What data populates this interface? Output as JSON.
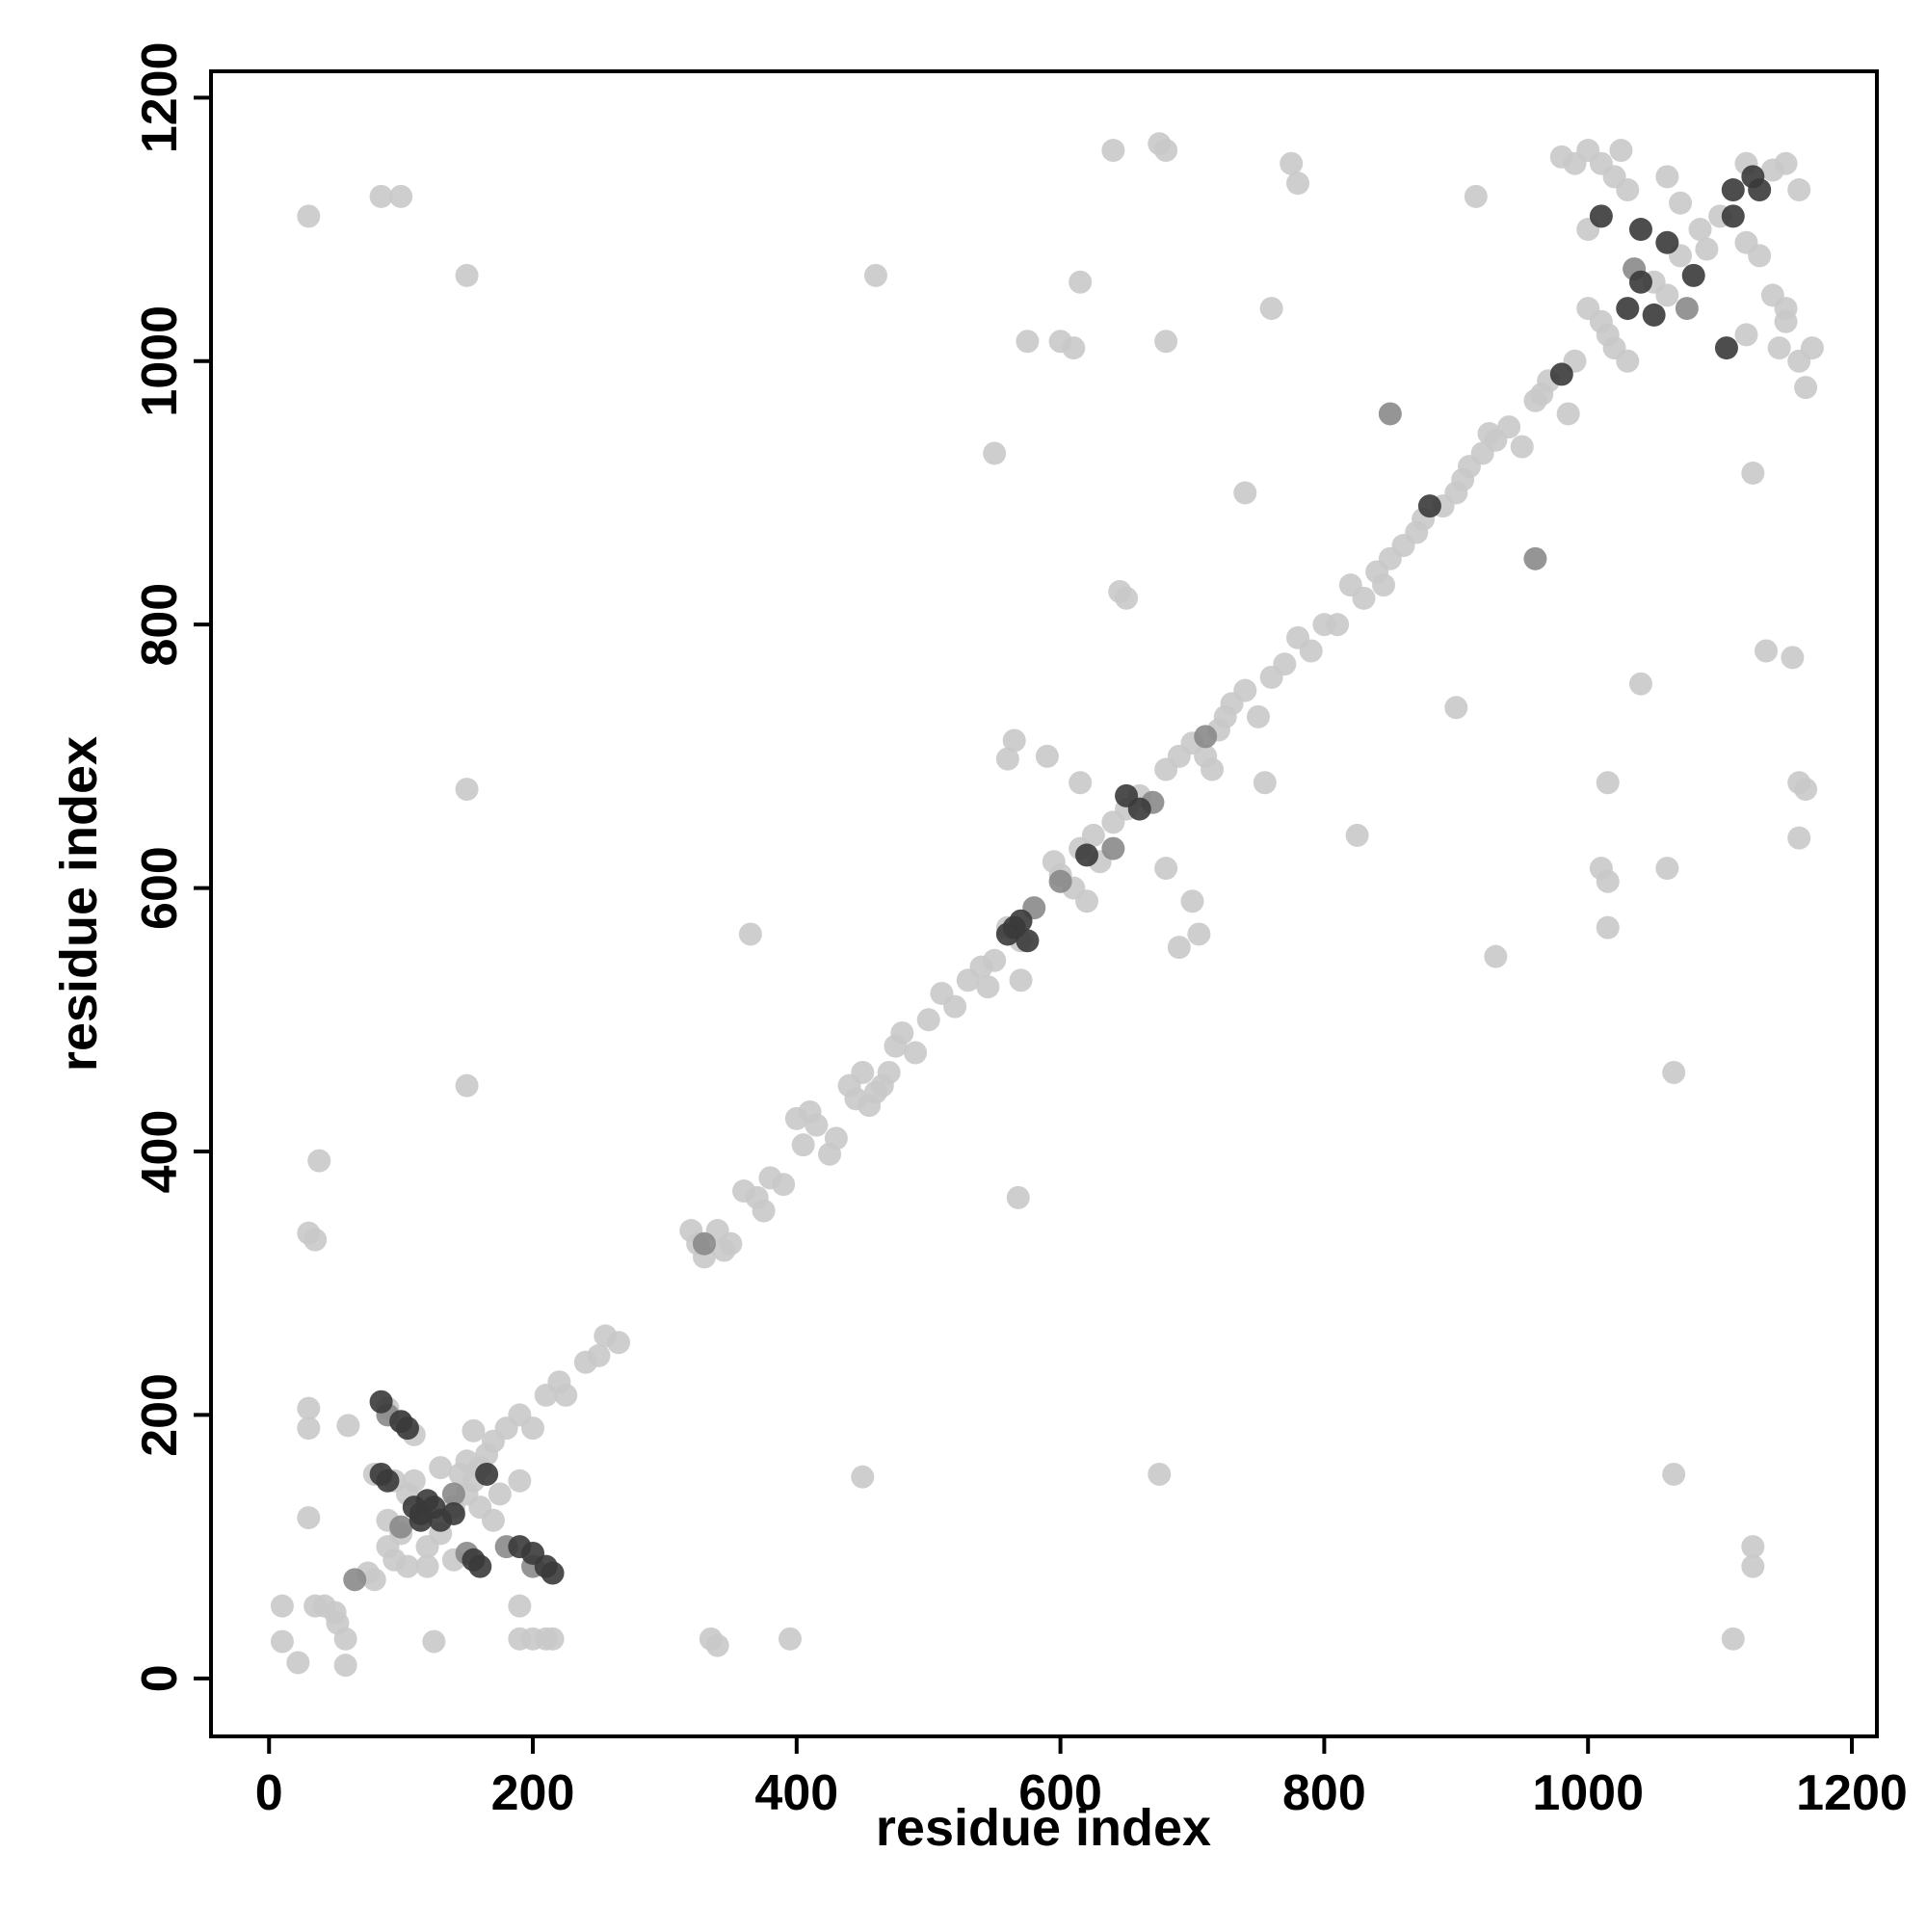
{
  "chart_data": {
    "type": "scatter",
    "xlabel": "residue index",
    "ylabel": "residue index",
    "xlim": [
      -44,
      1219
    ],
    "ylim": [
      -44,
      1220
    ],
    "xticks": [
      0,
      200,
      400,
      600,
      800,
      1000,
      1200
    ],
    "yticks": [
      0,
      200,
      400,
      600,
      800,
      1000,
      1200
    ],
    "grid": false,
    "series": [
      {
        "color": "#c9c9c9",
        "x": [
          10,
          10,
          22,
          35,
          42,
          50,
          52,
          58,
          58,
          30,
          30,
          30,
          60,
          38,
          30,
          35,
          90,
          100,
          110,
          90,
          100,
          90,
          95,
          105,
          120,
          130,
          140,
          150,
          155,
          160,
          165,
          170,
          155,
          180,
          190,
          200,
          210,
          220,
          225,
          240,
          250,
          255,
          265,
          75,
          80,
          190,
          190,
          200,
          210,
          215,
          125,
          190,
          160,
          170,
          145,
          150,
          130,
          110,
          105,
          95,
          80,
          120,
          140,
          175,
          320,
          325,
          330,
          340,
          345,
          350,
          360,
          370,
          375,
          380,
          390,
          400,
          410,
          405,
          415,
          425,
          430,
          440,
          445,
          450,
          455,
          460,
          465,
          470,
          475,
          480,
          490,
          500,
          510,
          520,
          530,
          540,
          545,
          550,
          560,
          570,
          595,
          600,
          610,
          615,
          620,
          625,
          630,
          640,
          650,
          660,
          680,
          690,
          700,
          710,
          715,
          720,
          725,
          730,
          740,
          750,
          760,
          770,
          780,
          790,
          800,
          810,
          820,
          830,
          840,
          845,
          850,
          860,
          870,
          875,
          890,
          900,
          905,
          910,
          920,
          925,
          930,
          940,
          950,
          960,
          965,
          970,
          985,
          990,
          1000,
          1010,
          1015,
          1020,
          1030,
          1050,
          1060,
          1070,
          1090,
          1100,
          1120,
          1130,
          1140,
          1150,
          1160,
          1165,
          1145,
          1150,
          1120,
          1120,
          1140,
          1150,
          1160,
          1000,
          1010,
          1020,
          1030,
          1025,
          980,
          990,
          1000,
          1060,
          1070,
          1085,
          30,
          85,
          100,
          150,
          150,
          150,
          365,
          335,
          340,
          395,
          450,
          460,
          550,
          560,
          565,
          568,
          570,
          575,
          590,
          600,
          610,
          615,
          615,
          640,
          645,
          650,
          675,
          680,
          675,
          680,
          680,
          690,
          700,
          705,
          740,
          755,
          760,
          775,
          780,
          825,
          900,
          915,
          930,
          1015,
          1010,
          1015,
          1015,
          1040,
          1060,
          1065,
          1065,
          1110,
          1125,
          1125,
          1125,
          1135,
          1155,
          1160,
          1165,
          1160,
          1170
        ],
        "y": [
          55,
          28,
          12,
          55,
          55,
          50,
          42,
          30,
          10,
          122,
          205,
          190,
          192,
          393,
          338,
          333,
          205,
          195,
          185,
          120,
          110,
          100,
          90,
          85,
          100,
          110,
          130,
          140,
          150,
          160,
          170,
          180,
          188,
          190,
          200,
          190,
          215,
          225,
          215,
          240,
          245,
          260,
          255,
          80,
          75,
          55,
          30,
          30,
          30,
          30,
          28,
          150,
          130,
          120,
          155,
          165,
          160,
          150,
          140,
          150,
          155,
          85,
          90,
          140,
          340,
          330,
          320,
          340,
          325,
          330,
          370,
          365,
          355,
          380,
          375,
          425,
          430,
          405,
          420,
          398,
          410,
          450,
          440,
          460,
          435,
          445,
          450,
          460,
          480,
          490,
          475,
          500,
          520,
          510,
          530,
          540,
          525,
          545,
          570,
          560,
          620,
          610,
          600,
          630,
          590,
          640,
          620,
          650,
          660,
          670,
          690,
          700,
          710,
          700,
          690,
          720,
          730,
          740,
          750,
          730,
          760,
          770,
          790,
          780,
          800,
          800,
          830,
          820,
          840,
          830,
          850,
          860,
          870,
          880,
          890,
          900,
          910,
          920,
          930,
          945,
          940,
          950,
          935,
          970,
          975,
          985,
          960,
          1000,
          1040,
          1030,
          1020,
          1010,
          1000,
          1060,
          1050,
          1080,
          1085,
          1110,
          1150,
          1080,
          1050,
          1030,
          1000,
          980,
          1010,
          1040,
          1020,
          1090,
          1145,
          1150,
          1130,
          1160,
          1150,
          1140,
          1130,
          1160,
          1155,
          1150,
          1100,
          1140,
          1120,
          1100,
          1110,
          1125,
          1125,
          1065,
          675,
          450,
          565,
          30,
          25,
          30,
          153,
          1065,
          930,
          698,
          712,
          365,
          530,
          1015,
          700,
          1015,
          1010,
          1060,
          680,
          1160,
          825,
          820,
          1165,
          1160,
          155,
          1015,
          615,
          555,
          590,
          565,
          900,
          680,
          1040,
          1150,
          1135,
          640,
          737,
          1125,
          548,
          680,
          615,
          605,
          570,
          755,
          615,
          460,
          155,
          30,
          100,
          85,
          915,
          780,
          775,
          680,
          675,
          638,
          1010
        ]
      },
      {
        "color": "#8a8a8a",
        "x": [
          65,
          90,
          150,
          180,
          200,
          100,
          140,
          330,
          580,
          600,
          640,
          670,
          710,
          850,
          960,
          1035,
          1075
        ],
        "y": [
          75,
          200,
          95,
          100,
          85,
          115,
          140,
          330,
          585,
          605,
          630,
          665,
          715,
          960,
          850,
          1070,
          1040
        ]
      },
      {
        "color": "#3a3a3a",
        "x": [
          85,
          90,
          110,
          115,
          120,
          125,
          130,
          140,
          105,
          100,
          85,
          155,
          160,
          190,
          200,
          210,
          215,
          165,
          115,
          560,
          565,
          570,
          575,
          620,
          660,
          650,
          880,
          980,
          1010,
          1030,
          1040,
          1050,
          1060,
          1080,
          1105,
          1110,
          1125,
          1130,
          1040,
          1110
        ],
        "y": [
          155,
          150,
          130,
          125,
          135,
          130,
          120,
          125,
          190,
          195,
          210,
          90,
          85,
          100,
          95,
          85,
          80,
          155,
          120,
          565,
          570,
          575,
          560,
          625,
          660,
          670,
          890,
          990,
          1110,
          1040,
          1060,
          1035,
          1090,
          1065,
          1010,
          1130,
          1140,
          1130,
          1100,
          1110
        ]
      }
    ]
  }
}
